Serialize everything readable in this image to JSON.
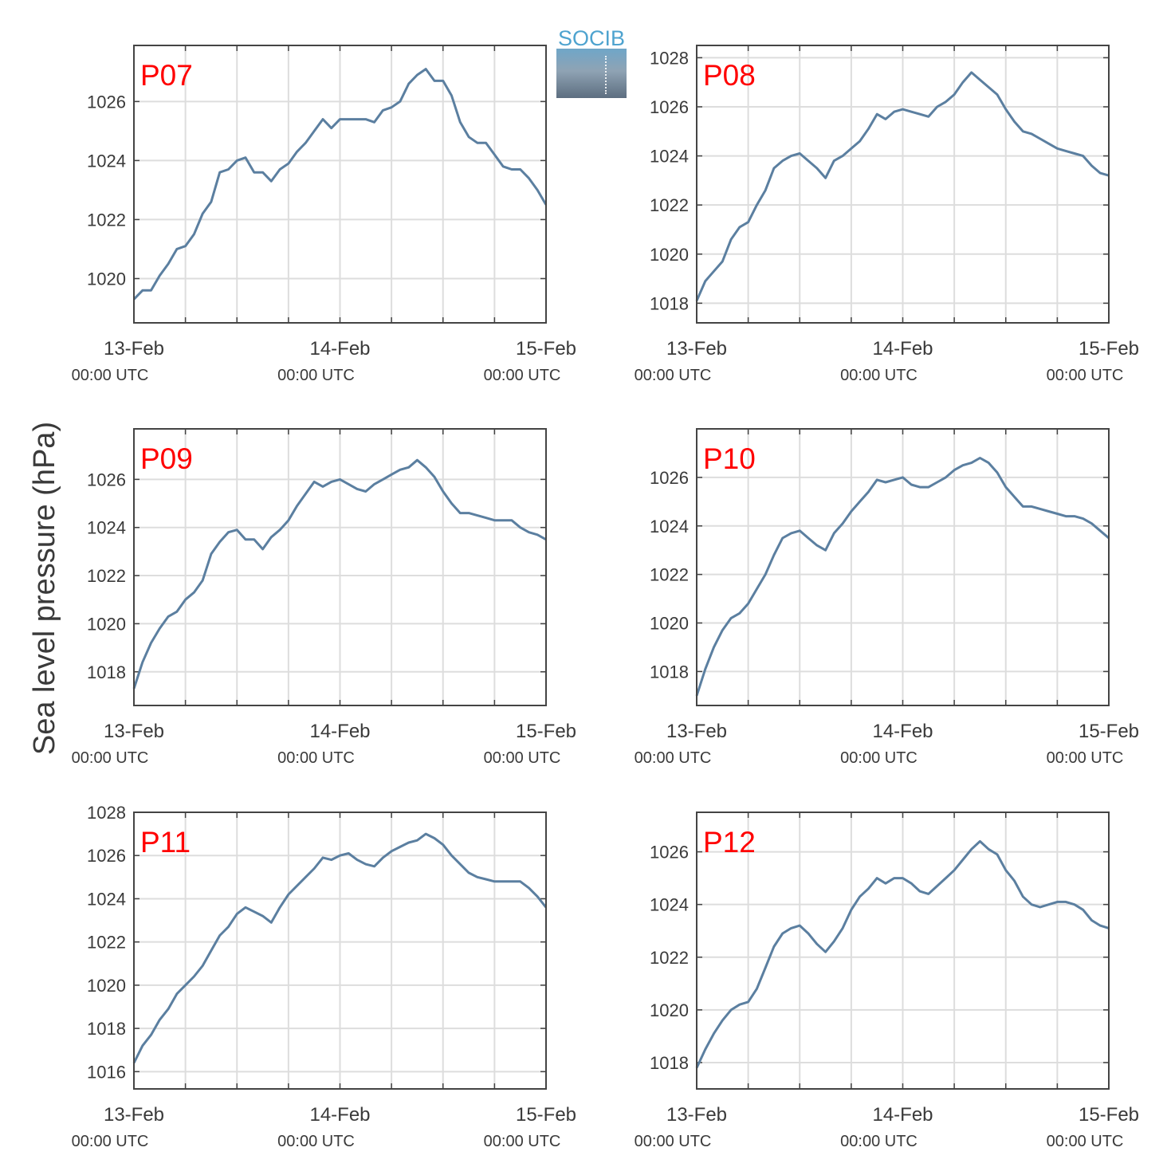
{
  "ylabel": "Sea level pressure (hPa)",
  "logo": {
    "text": "SOCIB"
  },
  "colors": {
    "line": "#5b7fa0",
    "label": "#ff0000",
    "grid": "#dddddd",
    "axis": "#444444"
  },
  "chart_data": [
    {
      "type": "line",
      "label": "P07",
      "xticks": [
        {
          "top": "13-Feb",
          "bottom": "00:00 UTC"
        },
        {
          "top": "14-Feb",
          "bottom": "00:00 UTC"
        },
        {
          "top": "15-Feb",
          "bottom": "00:00 UTC"
        }
      ],
      "yticks": [
        1020,
        1022,
        1024,
        1026
      ],
      "ylim": [
        1018.5,
        1027.9
      ],
      "xlim": [
        0,
        48
      ],
      "x": [
        0,
        1,
        2,
        3,
        4,
        5,
        6,
        7,
        8,
        9,
        10,
        11,
        12,
        13,
        14,
        15,
        16,
        17,
        18,
        19,
        20,
        21,
        22,
        23,
        24,
        25,
        26,
        27,
        28,
        29,
        30,
        31,
        32,
        33,
        34,
        35,
        36,
        37,
        38,
        39,
        40,
        41,
        42,
        43,
        44,
        45,
        46,
        47,
        48
      ],
      "values": [
        1019.3,
        1019.6,
        1019.6,
        1020.1,
        1020.5,
        1021.0,
        1021.1,
        1021.5,
        1022.2,
        1022.6,
        1023.6,
        1023.7,
        1024.0,
        1024.1,
        1023.6,
        1023.6,
        1023.3,
        1023.7,
        1023.9,
        1024.3,
        1024.6,
        1025.0,
        1025.4,
        1025.1,
        1025.4,
        1025.4,
        1025.4,
        1025.4,
        1025.3,
        1025.7,
        1025.8,
        1026.0,
        1026.6,
        1026.9,
        1027.1,
        1026.7,
        1026.7,
        1026.2,
        1025.3,
        1024.8,
        1024.6,
        1024.6,
        1024.2,
        1023.8,
        1023.7,
        1023.7,
        1023.4,
        1023.0,
        1022.5
      ]
    },
    {
      "type": "line",
      "label": "P08",
      "xticks": [
        {
          "top": "13-Feb",
          "bottom": "00:00 UTC"
        },
        {
          "top": "14-Feb",
          "bottom": "00:00 UTC"
        },
        {
          "top": "15-Feb",
          "bottom": "00:00 UTC"
        }
      ],
      "yticks": [
        1018,
        1020,
        1022,
        1024,
        1026,
        1028
      ],
      "ylim": [
        1017.2,
        1028.5
      ],
      "xlim": [
        0,
        48
      ],
      "x": [
        0,
        1,
        2,
        3,
        4,
        5,
        6,
        7,
        8,
        9,
        10,
        11,
        12,
        13,
        14,
        15,
        16,
        17,
        18,
        19,
        20,
        21,
        22,
        23,
        24,
        25,
        26,
        27,
        28,
        29,
        30,
        31,
        32,
        33,
        34,
        35,
        36,
        37,
        38,
        39,
        40,
        41,
        42,
        43,
        44,
        45,
        46,
        47,
        48
      ],
      "values": [
        1018.1,
        1018.9,
        1019.3,
        1019.7,
        1020.6,
        1021.1,
        1021.3,
        1022.0,
        1022.6,
        1023.5,
        1023.8,
        1024.0,
        1024.1,
        1023.8,
        1023.5,
        1023.1,
        1023.8,
        1024.0,
        1024.3,
        1024.6,
        1025.1,
        1025.7,
        1025.5,
        1025.8,
        1025.9,
        1025.8,
        1025.7,
        1025.6,
        1026.0,
        1026.2,
        1026.5,
        1027.0,
        1027.4,
        1027.1,
        1026.8,
        1026.5,
        1025.9,
        1025.4,
        1025.0,
        1024.9,
        1024.7,
        1024.5,
        1024.3,
        1024.2,
        1024.1,
        1024.0,
        1023.6,
        1023.3,
        1023.2
      ]
    },
    {
      "type": "line",
      "label": "P09",
      "xticks": [
        {
          "top": "13-Feb",
          "bottom": "00:00 UTC"
        },
        {
          "top": "14-Feb",
          "bottom": "00:00 UTC"
        },
        {
          "top": "15-Feb",
          "bottom": "00:00 UTC"
        }
      ],
      "yticks": [
        1018,
        1020,
        1022,
        1024,
        1026
      ],
      "ylim": [
        1016.6,
        1028.1
      ],
      "xlim": [
        0,
        48
      ],
      "x": [
        0,
        1,
        2,
        3,
        4,
        5,
        6,
        7,
        8,
        9,
        10,
        11,
        12,
        13,
        14,
        15,
        16,
        17,
        18,
        19,
        20,
        21,
        22,
        23,
        24,
        25,
        26,
        27,
        28,
        29,
        30,
        31,
        32,
        33,
        34,
        35,
        36,
        37,
        38,
        39,
        40,
        41,
        42,
        43,
        44,
        45,
        46,
        47,
        48
      ],
      "values": [
        1017.3,
        1018.4,
        1019.2,
        1019.8,
        1020.3,
        1020.5,
        1021.0,
        1021.3,
        1021.8,
        1022.9,
        1023.4,
        1023.8,
        1023.9,
        1023.5,
        1023.5,
        1023.1,
        1023.6,
        1023.9,
        1024.3,
        1024.9,
        1025.4,
        1025.9,
        1025.7,
        1025.9,
        1026.0,
        1025.8,
        1025.6,
        1025.5,
        1025.8,
        1026.0,
        1026.2,
        1026.4,
        1026.5,
        1026.8,
        1026.5,
        1026.1,
        1025.5,
        1025.0,
        1024.6,
        1024.6,
        1024.5,
        1024.4,
        1024.3,
        1024.3,
        1024.3,
        1024.0,
        1023.8,
        1023.7,
        1023.5
      ]
    },
    {
      "type": "line",
      "label": "P10",
      "xticks": [
        {
          "top": "13-Feb",
          "bottom": "00:00 UTC"
        },
        {
          "top": "14-Feb",
          "bottom": "00:00 UTC"
        },
        {
          "top": "15-Feb",
          "bottom": "00:00 UTC"
        }
      ],
      "yticks": [
        1018,
        1020,
        1022,
        1024,
        1026
      ],
      "ylim": [
        1016.6,
        1028.0
      ],
      "xlim": [
        0,
        48
      ],
      "x": [
        0,
        1,
        2,
        3,
        4,
        5,
        6,
        7,
        8,
        9,
        10,
        11,
        12,
        13,
        14,
        15,
        16,
        17,
        18,
        19,
        20,
        21,
        22,
        23,
        24,
        25,
        26,
        27,
        28,
        29,
        30,
        31,
        32,
        33,
        34,
        35,
        36,
        37,
        38,
        39,
        40,
        41,
        42,
        43,
        44,
        45,
        46,
        47,
        48
      ],
      "values": [
        1017.0,
        1018.1,
        1019.0,
        1019.7,
        1020.2,
        1020.4,
        1020.8,
        1021.4,
        1022.0,
        1022.8,
        1023.5,
        1023.7,
        1023.8,
        1023.5,
        1023.2,
        1023.0,
        1023.7,
        1024.1,
        1024.6,
        1025.0,
        1025.4,
        1025.9,
        1025.8,
        1025.9,
        1026.0,
        1025.7,
        1025.6,
        1025.6,
        1025.8,
        1026.0,
        1026.3,
        1026.5,
        1026.6,
        1026.8,
        1026.6,
        1026.2,
        1025.6,
        1025.2,
        1024.8,
        1024.8,
        1024.7,
        1024.6,
        1024.5,
        1024.4,
        1024.4,
        1024.3,
        1024.1,
        1023.8,
        1023.5
      ]
    },
    {
      "type": "line",
      "label": "P11",
      "xticks": [
        {
          "top": "13-Feb",
          "bottom": "00:00 UTC"
        },
        {
          "top": "14-Feb",
          "bottom": "00:00 UTC"
        },
        {
          "top": "15-Feb",
          "bottom": "00:00 UTC"
        }
      ],
      "yticks": [
        1016,
        1018,
        1020,
        1022,
        1024,
        1026,
        1028
      ],
      "ylim": [
        1015.2,
        1028.0
      ],
      "xlim": [
        0,
        48
      ],
      "x": [
        0,
        1,
        2,
        3,
        4,
        5,
        6,
        7,
        8,
        9,
        10,
        11,
        12,
        13,
        14,
        15,
        16,
        17,
        18,
        19,
        20,
        21,
        22,
        23,
        24,
        25,
        26,
        27,
        28,
        29,
        30,
        31,
        32,
        33,
        34,
        35,
        36,
        37,
        38,
        39,
        40,
        41,
        42,
        43,
        44,
        45,
        46,
        47,
        48
      ],
      "values": [
        1016.4,
        1017.2,
        1017.7,
        1018.4,
        1018.9,
        1019.6,
        1020.0,
        1020.4,
        1020.9,
        1021.6,
        1022.3,
        1022.7,
        1023.3,
        1023.6,
        1023.4,
        1023.2,
        1022.9,
        1023.6,
        1024.2,
        1024.6,
        1025.0,
        1025.4,
        1025.9,
        1025.8,
        1026.0,
        1026.1,
        1025.8,
        1025.6,
        1025.5,
        1025.9,
        1026.2,
        1026.4,
        1026.6,
        1026.7,
        1027.0,
        1026.8,
        1026.5,
        1026.0,
        1025.6,
        1025.2,
        1025.0,
        1024.9,
        1024.8,
        1024.8,
        1024.8,
        1024.8,
        1024.5,
        1024.1,
        1023.6
      ]
    },
    {
      "type": "line",
      "label": "P12",
      "xticks": [
        {
          "top": "13-Feb",
          "bottom": "00:00 UTC"
        },
        {
          "top": "14-Feb",
          "bottom": "00:00 UTC"
        },
        {
          "top": "15-Feb",
          "bottom": "00:00 UTC"
        }
      ],
      "yticks": [
        1018,
        1020,
        1022,
        1024,
        1026
      ],
      "ylim": [
        1017.0,
        1027.5
      ],
      "xlim": [
        0,
        48
      ],
      "x": [
        0,
        1,
        2,
        3,
        4,
        5,
        6,
        7,
        8,
        9,
        10,
        11,
        12,
        13,
        14,
        15,
        16,
        17,
        18,
        19,
        20,
        21,
        22,
        23,
        24,
        25,
        26,
        27,
        28,
        29,
        30,
        31,
        32,
        33,
        34,
        35,
        36,
        37,
        38,
        39,
        40,
        41,
        42,
        43,
        44,
        45,
        46,
        47,
        48
      ],
      "values": [
        1017.8,
        1018.5,
        1019.1,
        1019.6,
        1020.0,
        1020.2,
        1020.3,
        1020.8,
        1021.6,
        1022.4,
        1022.9,
        1023.1,
        1023.2,
        1022.9,
        1022.5,
        1022.2,
        1022.6,
        1023.1,
        1023.8,
        1024.3,
        1024.6,
        1025.0,
        1024.8,
        1025.0,
        1025.0,
        1024.8,
        1024.5,
        1024.4,
        1024.7,
        1025.0,
        1025.3,
        1025.7,
        1026.1,
        1026.4,
        1026.1,
        1025.9,
        1025.3,
        1024.9,
        1024.3,
        1024.0,
        1023.9,
        1024.0,
        1024.1,
        1024.1,
        1024.0,
        1023.8,
        1023.4,
        1023.2,
        1023.1
      ]
    }
  ]
}
